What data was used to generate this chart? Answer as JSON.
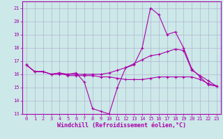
{
  "background_color": "#cce8e8",
  "grid_color": "#aaaacc",
  "line_color": "#aa00aa",
  "xlabel": "Windchill (Refroidissement éolien,°C)",
  "xlim": [
    -0.5,
    23.5
  ],
  "ylim": [
    13,
    21.5
  ],
  "yticks": [
    13,
    14,
    15,
    16,
    17,
    18,
    19,
    20,
    21
  ],
  "xticks": [
    0,
    1,
    2,
    3,
    4,
    5,
    6,
    7,
    8,
    9,
    10,
    11,
    12,
    13,
    14,
    15,
    16,
    17,
    18,
    19,
    20,
    21,
    22,
    23
  ],
  "series": [
    {
      "x": [
        0,
        1,
        2,
        3,
        4,
        5,
        6,
        7,
        8,
        9,
        10,
        11,
        12,
        13,
        14,
        15,
        16,
        17,
        18,
        19,
        20,
        21,
        22,
        23
      ],
      "y": [
        16.7,
        16.2,
        16.2,
        16.0,
        16.0,
        16.0,
        16.1,
        15.4,
        13.4,
        13.2,
        13.0,
        15.0,
        16.5,
        16.7,
        18.0,
        21.0,
        20.5,
        19.0,
        19.2,
        18.0,
        16.4,
        15.8,
        15.2,
        15.1
      ]
    },
    {
      "x": [
        0,
        1,
        2,
        3,
        4,
        5,
        6,
        7,
        8,
        9,
        10,
        11,
        12,
        13,
        14,
        15,
        16,
        17,
        18,
        19,
        20,
        21,
        22,
        23
      ],
      "y": [
        16.7,
        16.2,
        16.2,
        16.0,
        16.1,
        16.0,
        16.0,
        16.0,
        16.0,
        16.0,
        16.1,
        16.3,
        16.5,
        16.8,
        17.1,
        17.4,
        17.5,
        17.7,
        17.9,
        17.8,
        16.3,
        15.9,
        15.5,
        15.1
      ]
    },
    {
      "x": [
        0,
        1,
        2,
        3,
        4,
        5,
        6,
        7,
        8,
        9,
        10,
        11,
        12,
        13,
        14,
        15,
        16,
        17,
        18,
        19,
        20,
        21,
        22,
        23
      ],
      "y": [
        16.7,
        16.2,
        16.2,
        16.0,
        16.1,
        15.9,
        15.9,
        15.9,
        15.9,
        15.8,
        15.8,
        15.7,
        15.6,
        15.6,
        15.6,
        15.7,
        15.8,
        15.8,
        15.8,
        15.8,
        15.8,
        15.6,
        15.3,
        15.1
      ]
    }
  ],
  "marker": "+",
  "markersize": 3,
  "linewidth": 0.8,
  "tick_fontsize": 5,
  "xlabel_fontsize": 6
}
